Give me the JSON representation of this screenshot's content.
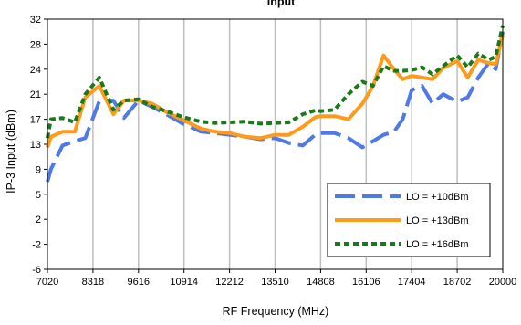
{
  "chart_data": {
    "type": "line",
    "title": "Input",
    "xlabel": "RF Frequency (MHz)",
    "ylabel": "IP-3 Input (dBm)",
    "x_tick_labels": [
      "7020",
      "8318",
      "9616",
      "10914",
      "12212",
      "13510",
      "14808",
      "16106",
      "17404",
      "18702",
      "20000"
    ],
    "x_ticks": [
      7020,
      8318,
      9616,
      10914,
      12212,
      13510,
      14808,
      16106,
      17404,
      18702,
      20000
    ],
    "y_ticks": [
      -6,
      -2,
      2,
      5,
      9,
      13,
      17,
      21,
      24,
      28,
      32
    ],
    "ylim": [
      -6,
      32
    ],
    "xlim": [
      7020,
      20000
    ],
    "grid": "vertical",
    "legend_position": "bottom-right",
    "x": [
      7020,
      7120,
      7450,
      7800,
      8100,
      8500,
      8900,
      9200,
      9616,
      10000,
      10400,
      10914,
      11400,
      11800,
      12212,
      12650,
      13100,
      13510,
      13900,
      14300,
      14650,
      14808,
      15200,
      15600,
      16000,
      16300,
      16600,
      16900,
      17150,
      17404,
      17700,
      18000,
      18300,
      18702,
      19000,
      19300,
      19600,
      19800,
      20000
    ],
    "series": [
      {
        "name": "LO = +10dBm",
        "color": "#4f79e8",
        "dash": "dash",
        "values": [
          7,
          9,
          12.8,
          13.5,
          14,
          19.9,
          20,
          17.2,
          20,
          19,
          17.8,
          16.2,
          15,
          14.8,
          14.5,
          14.2,
          13.8,
          14,
          13.2,
          12.8,
          14.5,
          14.8,
          14.8,
          14,
          12.5,
          13.5,
          14.5,
          15,
          17,
          21.5,
          22,
          19.5,
          21,
          19.8,
          20.5,
          23,
          25,
          24,
          30
        ]
      },
      {
        "name": "LO = +13dBm",
        "color": "#ff9a1a",
        "dash": "solid",
        "values": [
          12.5,
          14.2,
          15,
          15,
          20.5,
          22,
          17.8,
          20,
          20,
          19.5,
          18.2,
          16.8,
          15.5,
          15,
          14.8,
          14.2,
          14,
          14.5,
          14.5,
          15.8,
          17.3,
          17.5,
          17.5,
          17,
          19.5,
          22,
          26.2,
          24,
          22.8,
          23.2,
          23,
          22.8,
          24.2,
          25.3,
          23,
          25.5,
          25,
          24.8,
          29.5
        ]
      },
      {
        "name": "LO = +16dBm",
        "color": "#1a7a1a",
        "dash": "dot",
        "values": [
          14,
          17,
          17.2,
          16.5,
          21,
          23,
          18.5,
          20,
          20.2,
          19,
          18.3,
          17.3,
          16.6,
          16.4,
          16.5,
          16.6,
          16.3,
          16.4,
          16.5,
          17.8,
          18.4,
          18.3,
          18.5,
          21,
          22.5,
          22,
          24.5,
          23.8,
          23.8,
          23.9,
          24.3,
          23.4,
          24.5,
          26.2,
          24.3,
          26.5,
          25.5,
          26,
          31
        ]
      }
    ]
  }
}
